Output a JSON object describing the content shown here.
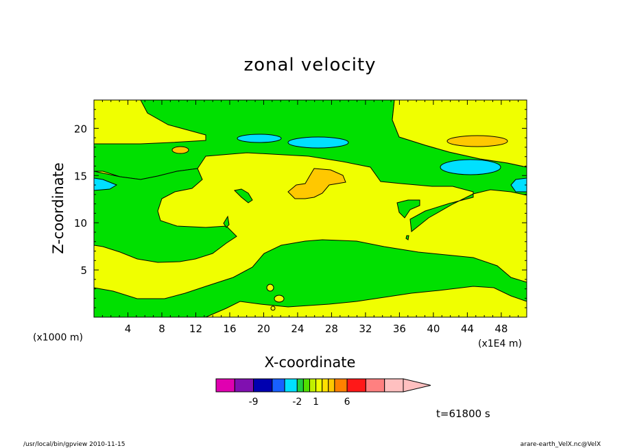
{
  "chart_data": {
    "type": "heatmap",
    "title": "zonal velocity",
    "xlabel": "X-coordinate",
    "ylabel": "Z-coordinate",
    "x_unit_label": "(x1E4 m)",
    "y_unit_label": "(x1000 m)",
    "xlim": [
      0,
      51
    ],
    "ylim": [
      0,
      23
    ],
    "x_ticks": [
      4,
      8,
      12,
      16,
      20,
      24,
      28,
      32,
      36,
      40,
      44,
      48
    ],
    "y_ticks": [
      5,
      10,
      15,
      20
    ],
    "colorbar": {
      "levels": [
        -15,
        -12,
        -9,
        -6,
        -4,
        -2,
        -1,
        0,
        1,
        2,
        3,
        4,
        6,
        9,
        12,
        15
      ],
      "colors": [
        "#e000b0",
        "#8010b0",
        "#0000b0",
        "#1860ff",
        "#00e0ff",
        "#20d040",
        "#50e000",
        "#c0f000",
        "#f0ff00",
        "#ffe000",
        "#ffc800",
        "#ff8000",
        "#ff1818",
        "#ff8080",
        "#ffc0c0"
      ],
      "tick_labels": [
        {
          "level": -9,
          "label": "-9"
        },
        {
          "level": -2,
          "label": "-2"
        },
        {
          "level": 1,
          "label": "1"
        },
        {
          "level": 6,
          "label": "6"
        }
      ],
      "extend": "max"
    },
    "time_label": "t=61800 s",
    "footer_left": "/usr/local/bin/gpview  2010-11-15",
    "footer_right": "arare-earth_VelX.nc@VelX",
    "field_colors": {
      "background_positive": "#f0ff00",
      "weak_negative": "#00e000",
      "moderate_negative": "#00e0ff",
      "strong_positive": "#ffc800"
    }
  }
}
